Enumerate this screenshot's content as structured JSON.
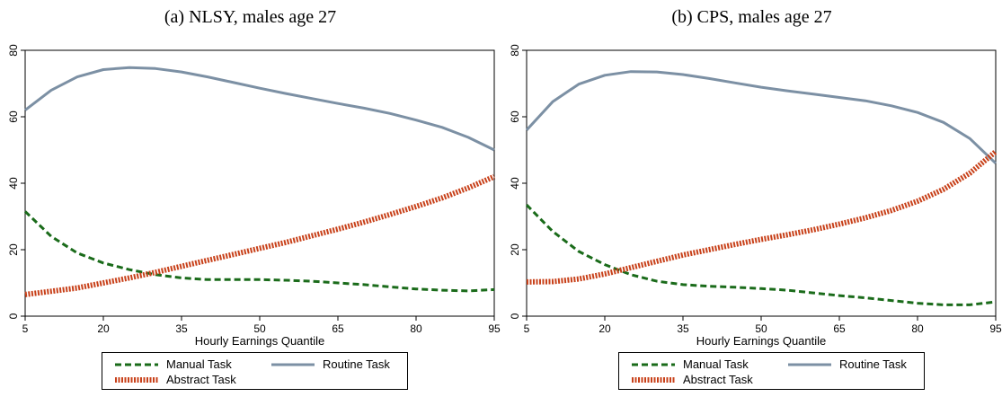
{
  "chart_data": [
    {
      "type": "line",
      "title": "(a) NLSY, males age 27",
      "xlabel": "Hourly Earnings Quantile",
      "ylabel": "",
      "xlim": [
        5,
        95
      ],
      "ylim": [
        0,
        80
      ],
      "xticks": [
        5,
        20,
        35,
        50,
        65,
        80,
        95
      ],
      "yticks": [
        0,
        20,
        40,
        60,
        80
      ],
      "x": [
        5,
        10,
        15,
        20,
        25,
        30,
        35,
        40,
        45,
        50,
        55,
        60,
        65,
        70,
        75,
        80,
        85,
        90,
        95
      ],
      "series": [
        {
          "name": "Manual Task",
          "color": "#1a6b1a",
          "style": "dashed",
          "values": [
            31.5,
            24,
            19,
            16,
            14,
            12.5,
            11.5,
            11,
            11,
            11,
            10.8,
            10.5,
            10,
            9.5,
            8.8,
            8.2,
            7.8,
            7.6,
            8
          ]
        },
        {
          "name": "Routine Task",
          "color": "#7c90a4",
          "style": "solid",
          "values": [
            62,
            68,
            72,
            74.2,
            74.8,
            74.5,
            73.5,
            72,
            70.3,
            68.6,
            67,
            65.5,
            64,
            62.6,
            61,
            59,
            56.8,
            53.8,
            50
          ]
        },
        {
          "name": "Abstract Task",
          "color": "#c8411a",
          "style": "dotted",
          "values": [
            6.5,
            7.5,
            8.5,
            10,
            11.5,
            13.2,
            15,
            16.8,
            18.6,
            20.4,
            22.2,
            24.2,
            26.2,
            28.3,
            30.6,
            33,
            35.6,
            38.6,
            42
          ]
        }
      ],
      "legend": "bottom"
    },
    {
      "type": "line",
      "title": "(b) CPS, males age 27",
      "xlabel": "Hourly Earnings Quantile",
      "ylabel": "",
      "xlim": [
        5,
        95
      ],
      "ylim": [
        0,
        80
      ],
      "xticks": [
        5,
        20,
        35,
        50,
        65,
        80,
        95
      ],
      "yticks": [
        0,
        20,
        40,
        60,
        80
      ],
      "x": [
        5,
        10,
        15,
        20,
        25,
        30,
        35,
        40,
        45,
        50,
        55,
        60,
        65,
        70,
        75,
        80,
        85,
        90,
        95
      ],
      "series": [
        {
          "name": "Manual Task",
          "color": "#1a6b1a",
          "style": "dashed",
          "values": [
            33.5,
            25.5,
            19.5,
            15.5,
            12.5,
            10.5,
            9.5,
            9,
            8.7,
            8.3,
            7.8,
            7,
            6.2,
            5.5,
            4.7,
            3.9,
            3.4,
            3.4,
            4.3
          ]
        },
        {
          "name": "Routine Task",
          "color": "#7c90a4",
          "style": "solid",
          "values": [
            56,
            64.5,
            69.8,
            72.5,
            73.6,
            73.5,
            72.7,
            71.5,
            70.2,
            68.9,
            67.8,
            66.8,
            65.8,
            64.8,
            63.3,
            61.3,
            58.3,
            53.5,
            46
          ]
        },
        {
          "name": "Abstract Task",
          "color": "#c8411a",
          "style": "dotted",
          "values": [
            10.3,
            10.4,
            11.2,
            12.7,
            14.6,
            16.5,
            18.4,
            20,
            21.6,
            23.1,
            24.5,
            26,
            27.7,
            29.6,
            31.8,
            34.6,
            38.2,
            43,
            49.5
          ]
        }
      ],
      "legend": "bottom"
    }
  ]
}
